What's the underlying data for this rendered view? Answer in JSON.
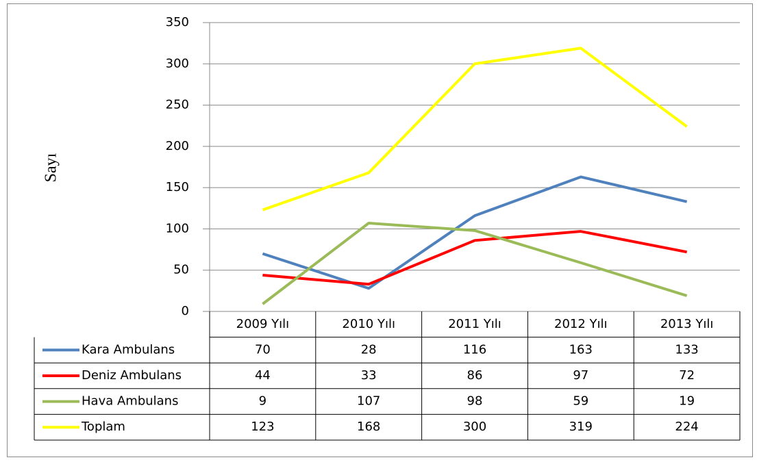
{
  "chart_data": {
    "type": "line",
    "ylabel": "Sayı",
    "categories": [
      "2009 Yılı",
      "2010 Yılı",
      "2011 Yılı",
      "2012 Yılı",
      "2013 Yılı"
    ],
    "series": [
      {
        "name": "Kara Ambulans",
        "color": "#4f81bd",
        "values": [
          70,
          28,
          116,
          163,
          133
        ]
      },
      {
        "name": "Deniz Ambulans",
        "color": "#ff0000",
        "values": [
          44,
          33,
          86,
          97,
          72
        ]
      },
      {
        "name": "Hava Ambulans",
        "color": "#9bbb59",
        "values": [
          9,
          107,
          98,
          59,
          19
        ]
      },
      {
        "name": "Toplam",
        "color": "#ffff00",
        "values": [
          123,
          168,
          300,
          319,
          224
        ]
      }
    ],
    "ylim": [
      0,
      350
    ],
    "yticks": [
      0,
      50,
      100,
      150,
      200,
      250,
      300,
      350
    ],
    "grid": true
  }
}
